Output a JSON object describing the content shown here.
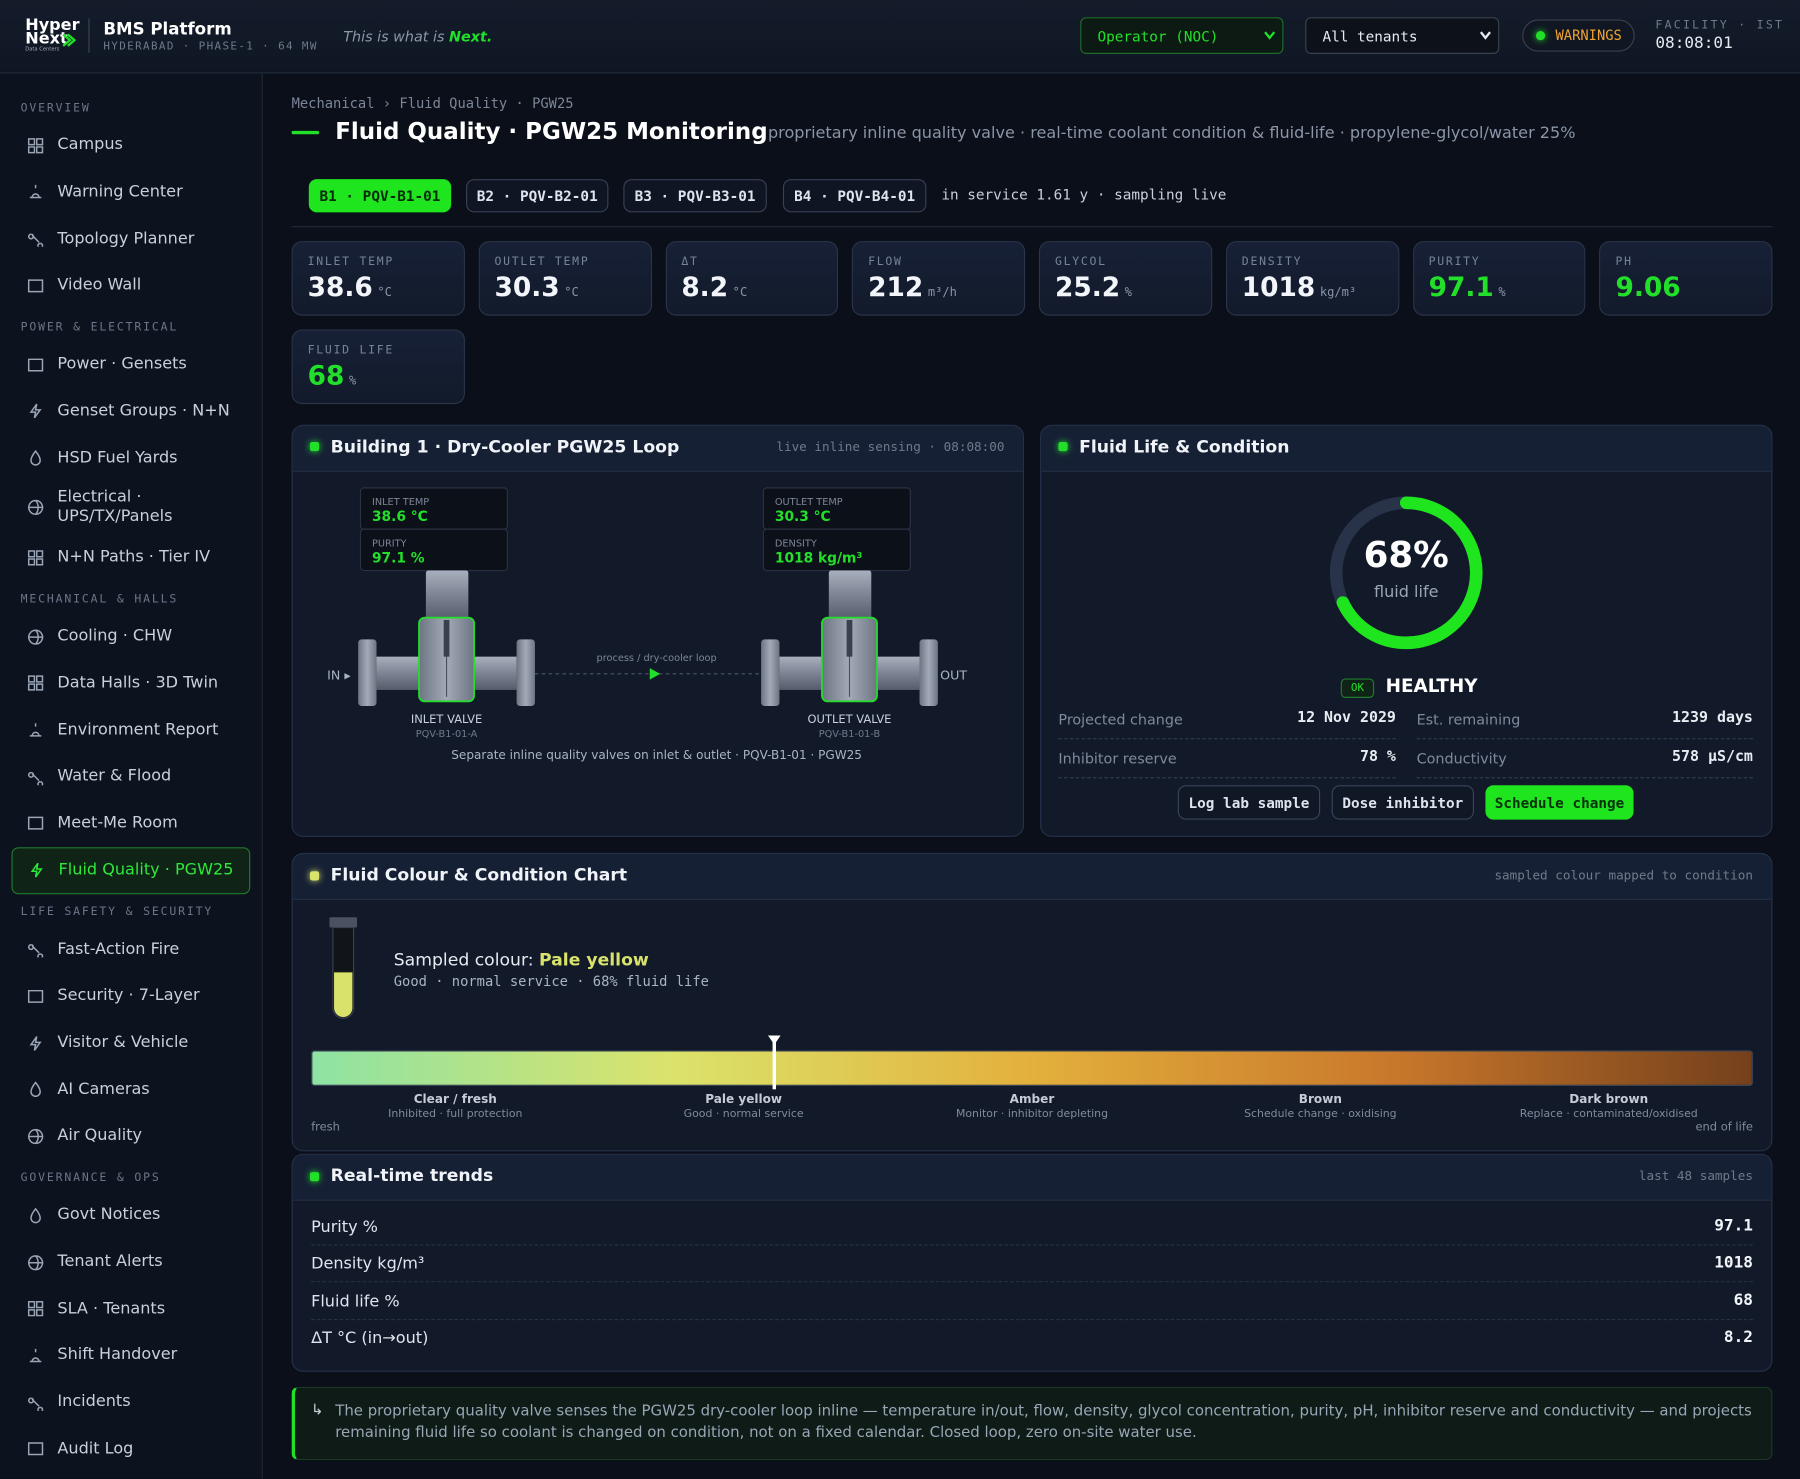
{
  "header": {
    "logo": {
      "line1": "Hyper",
      "line2": "Next",
      "tagline": "Data Centers"
    },
    "title": "BMS Platform",
    "subtitle": "HYDERABAD · PHASE-1 · 64 MW",
    "slogan": "This is what is",
    "slogan_em": "Next.",
    "role": "Operator (NOC)",
    "tenant": "All tenants",
    "status": "WARNINGS",
    "clock_label": "FACILITY · IST",
    "clock": "08:08:01"
  },
  "sidebar": {
    "sections": [
      {
        "title": "OVERVIEW",
        "items": [
          "Campus",
          "Warning Center",
          "Topology Planner",
          "Video Wall"
        ]
      },
      {
        "title": "POWER & ELECTRICAL",
        "items": [
          "Power · Gensets",
          "Genset Groups · N+N",
          "HSD Fuel Yards",
          "Electrical · UPS/TX/Panels",
          "N+N Paths · Tier IV"
        ]
      },
      {
        "title": "MECHANICAL & HALLS",
        "items": [
          "Cooling · CHW",
          "Data Halls · 3D Twin",
          "Environment Report",
          "Water & Flood",
          "Meet-Me Room",
          "Fluid Quality · PGW25"
        ]
      },
      {
        "title": "LIFE SAFETY & SECURITY",
        "items": [
          "Fast-Action Fire",
          "Security · 7-Layer",
          "Visitor & Vehicle",
          "AI Cameras",
          "Air Quality"
        ]
      },
      {
        "title": "GOVERNANCE & OPS",
        "items": [
          "Govt Notices",
          "Tenant Alerts",
          "SLA · Tenants",
          "Shift Handover",
          "Incidents",
          "Audit Log"
        ]
      }
    ]
  },
  "page": {
    "breadcrumb": "Mechanical › Fluid Quality · PGW25",
    "title": "Fluid Quality · PGW25 Monitoring",
    "description": "proprietary inline quality valve · real-time coolant condition & fluid-life · propylene-glycol/water 25%",
    "tabs": [
      "B1 · PQV-B1-01",
      "B2 · PQV-B2-01",
      "B3 · PQV-B3-01",
      "B4 · PQV-B4-01"
    ],
    "tab_status": "in service 1.61 y · sampling live"
  },
  "kpis": [
    {
      "label": "INLET TEMP",
      "value": 38.6,
      "unit": "°C"
    },
    {
      "label": "OUTLET TEMP",
      "value": 30.3,
      "unit": "°C"
    },
    {
      "label": "ΔT",
      "value": 8.2,
      "unit": "°C"
    },
    {
      "label": "FLOW",
      "value": 212,
      "unit": "m³/h"
    },
    {
      "label": "GLYCOL",
      "value": 25.2,
      "unit": "%"
    },
    {
      "label": "DENSITY",
      "value": 1018,
      "unit": "kg/m³"
    },
    {
      "label": "PURITY",
      "value": 97.1,
      "unit": "%",
      "color": "#22e02a"
    },
    {
      "label": "PH",
      "value": 9.06,
      "color": "#22e02a"
    },
    {
      "label": "FLUID LIFE",
      "value": 68,
      "unit": "%",
      "color": "#22e02a"
    }
  ],
  "loop_panel": {
    "title": "Building 1 · Dry-Cooler PGW25 Loop",
    "meta": "live inline sensing · 08:08:00",
    "inlet": {
      "readings": [
        {
          "label": "INLET TEMP",
          "value": "38.6 °C"
        },
        {
          "label": "PURITY",
          "value": "97.1 %"
        }
      ],
      "name": "INLET VALVE",
      "id": "PQV-B1-01-A"
    },
    "outlet": {
      "readings": [
        {
          "label": "OUTLET TEMP",
          "value": "30.3 °C"
        },
        {
          "label": "DENSITY",
          "value": "1018 kg/m³"
        }
      ],
      "name": "OUTLET VALVE",
      "id": "PQV-B1-01-B"
    },
    "in_label": "IN ▸",
    "out_label": "▸ OUT",
    "flow_label": "process / dry-cooler loop",
    "caption": "Separate inline quality valves on inlet & outlet · PQV-B1-01 · PGW25"
  },
  "fluid_life": {
    "title": "Fluid Life & Condition",
    "gauge": {
      "value": 68,
      "max": 100,
      "label": "68%",
      "caption": "fluid life"
    },
    "badge": "OK",
    "status": "HEALTHY",
    "stats": [
      {
        "label": "Projected change",
        "value": "12 Nov 2029"
      },
      {
        "label": "Est. remaining",
        "value": "1239 days"
      },
      {
        "label": "Inhibitor reserve",
        "value": "78 %"
      },
      {
        "label": "Conductivity",
        "value": "578 µS/cm"
      }
    ],
    "buttons": [
      "Log lab sample",
      "Dose inhibitor",
      "Schedule change"
    ]
  },
  "colour_chart": {
    "title": "Fluid Colour & Condition Chart",
    "meta": "sampled colour mapped to condition",
    "sample_prefix": "Sampled colour:",
    "sample_name": "Pale yellow",
    "sample_color": "#d9e26a",
    "sample_note": "Good · normal service · 68% fluid life",
    "stops": [
      {
        "name": "Clear / fresh",
        "note": "Inhibited · full protection",
        "color": "#8ee3a4"
      },
      {
        "name": "Pale yellow",
        "note": "Good · normal service",
        "color": "#dbe36b"
      },
      {
        "name": "Amber",
        "note": "Monitor · inhibitor depleting",
        "color": "#e3b03c"
      },
      {
        "name": "Brown",
        "note": "Schedule change · oxidising",
        "color": "#c9782b"
      },
      {
        "name": "Dark brown",
        "note": "Replace · contaminated/oxidised",
        "color": "#74401b"
      }
    ],
    "start_label": "fresh",
    "end_label": "end of life"
  },
  "trends": {
    "title": "Real-time trends",
    "meta": "last 48 samples",
    "rows": [
      {
        "label": "Purity %",
        "value": 97.1
      },
      {
        "label": "Density kg/m³",
        "value": 1018
      },
      {
        "label": "Fluid life %",
        "value": 68
      },
      {
        "label": "ΔT °C (in→out)",
        "value": 8.2
      }
    ]
  },
  "note": {
    "icon": "↳",
    "text": "The proprietary quality valve senses the PGW25 dry-cooler loop inline — temperature in/out, flow, density, glycol concentration, purity, pH, inhibitor reserve and conductivity — and projects remaining fluid life so coolant is changed on condition, not on a fixed calendar. Closed loop, zero on-site water use."
  }
}
